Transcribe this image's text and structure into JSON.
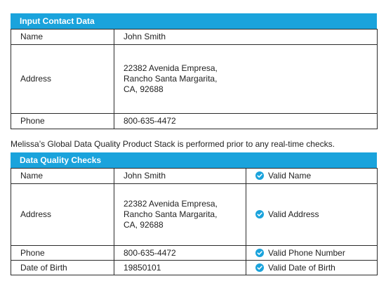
{
  "input_section": {
    "title": "Input Contact Data",
    "rows": [
      {
        "label": "Name",
        "value": "John Smith"
      },
      {
        "label": "Address",
        "lines": [
          "22382 Avenida Empresa,",
          "Rancho Santa Margarita,",
          "CA, 92688"
        ]
      },
      {
        "label": "Phone",
        "value": "800-635-4472"
      }
    ]
  },
  "caption": "Melissa’s Global Data Quality Product Stack is performed prior to any real-time checks.",
  "checks_section": {
    "title": "Data Quality Checks",
    "rows": [
      {
        "label": "Name",
        "value": "John Smith",
        "status": "Valid Name"
      },
      {
        "label": "Address",
        "lines": [
          "22382 Avenida Empresa,",
          "Rancho Santa Margarita,",
          "CA, 92688"
        ],
        "status": "Valid Address"
      },
      {
        "label": "Phone",
        "value": "800-635-4472",
        "status": "Valid Phone Number"
      },
      {
        "label": "Date of Birth",
        "value": "19850101",
        "status": "Valid Date of Birth"
      }
    ]
  },
  "icons": {
    "check": "check-circle-icon"
  },
  "colors": {
    "header": "#1aa3dc",
    "check": "#1aa3dc",
    "border": "#2b2b2b"
  }
}
